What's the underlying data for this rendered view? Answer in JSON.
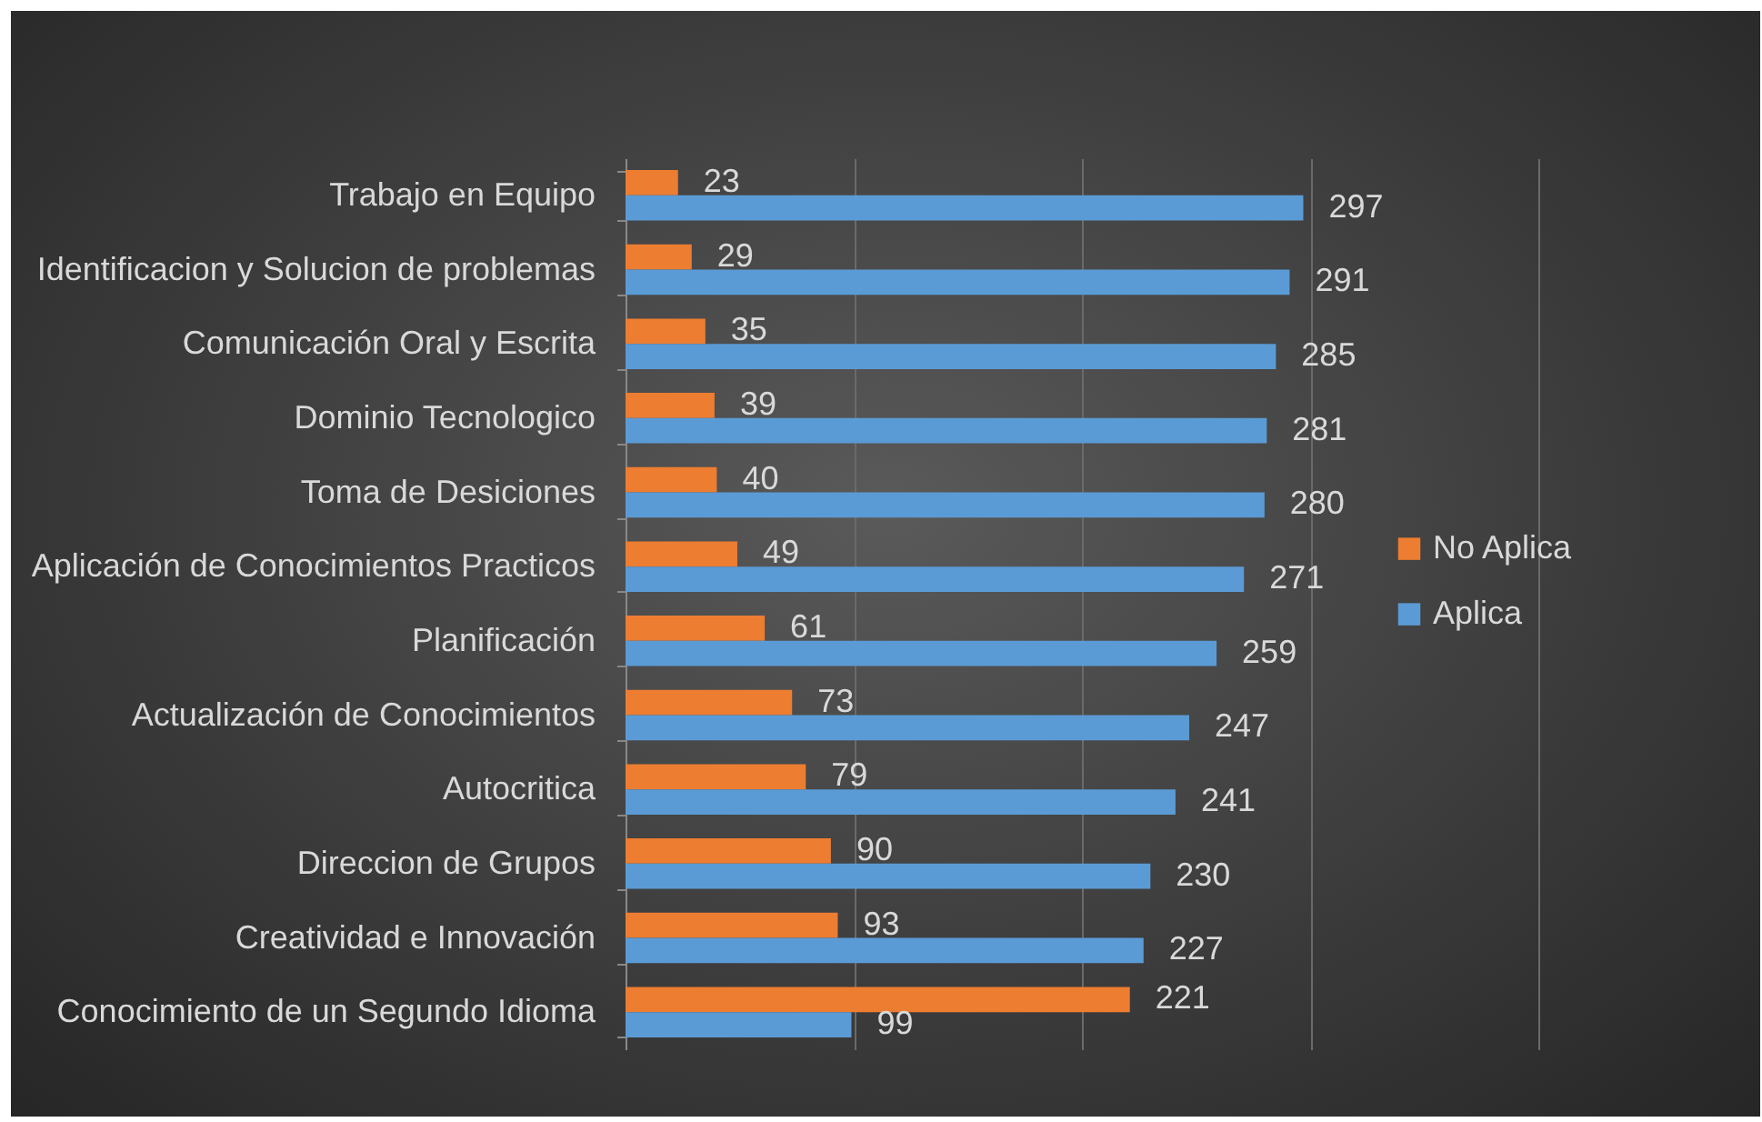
{
  "chart_data": {
    "type": "bar",
    "orientation": "horizontal",
    "categories": [
      "Trabajo en Equipo",
      "Identificacion y Solucion de problemas",
      "Comunicación Oral y Escrita",
      "Dominio Tecnologico",
      "Toma de Desiciones",
      "Aplicación de Conocimientos Practicos",
      "Planificación ",
      "Actualización de Conocimientos",
      "Autocritica",
      "Direccion de Grupos",
      "Creatividad e Innovación",
      "Conocimiento de un Segundo Idioma"
    ],
    "series": [
      {
        "name": "No Aplica",
        "color": "#ed7d31",
        "values": [
          23,
          29,
          35,
          39,
          40,
          49,
          61,
          73,
          79,
          90,
          93,
          221
        ]
      },
      {
        "name": "Aplica",
        "color": "#5b9bd5",
        "values": [
          297,
          291,
          285,
          281,
          280,
          271,
          259,
          247,
          241,
          230,
          227,
          99
        ]
      }
    ],
    "xlim": [
      0,
      400
    ],
    "xticks": [
      {
        "value": 0,
        "label": null
      },
      {
        "value": 100,
        "label": null
      },
      {
        "value": 200,
        "label": null
      },
      {
        "value": 300,
        "label": null
      },
      {
        "value": 400,
        "label": null
      }
    ],
    "tick_labels": "y",
    "grid": "x",
    "legend": "right",
    "data_labels": true
  }
}
